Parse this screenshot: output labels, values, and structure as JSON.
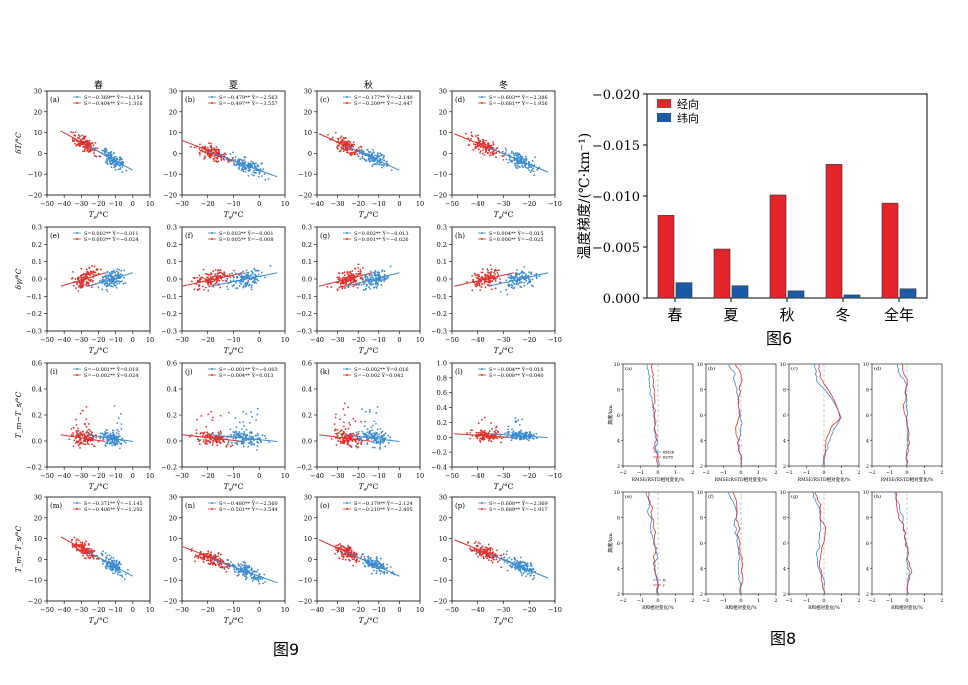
{
  "captions": {
    "fig9": "图9",
    "fig6": "图6",
    "fig8": "图8"
  },
  "colors": {
    "blue": "#3b8bd1",
    "red": "#e0302b",
    "bar_red": "#e3252b",
    "bar_blue": "#1d5aa5"
  },
  "fig9": {
    "seasons": [
      "春",
      "夏",
      "秋",
      "冬"
    ],
    "xlabel": "T",
    "xlabel_sub": "s",
    "xlabel_unit": "/°C",
    "xticks": [
      [
        "−50",
        "−40",
        "−30",
        "−20",
        "−10",
        "0",
        "10"
      ],
      [
        "−30",
        "−20",
        "−10",
        "0",
        "10"
      ],
      [
        "−40",
        "−30",
        "−20",
        "−10",
        "0",
        "10"
      ],
      [
        "−50",
        "−40",
        "−30",
        "−20",
        "−10"
      ]
    ],
    "rows": [
      {
        "ylabel": "δT/°C",
        "yticks": [
          "30",
          "20",
          "10",
          "0",
          "−10",
          "−20"
        ]
      },
      {
        "ylabel": "δγ/°C",
        "yticks": [
          "0.3",
          "0.2",
          "0.1",
          "0.0",
          "−0.1",
          "−0.2",
          "−0.3"
        ]
      },
      {
        "ylabel": "T_m−T_s/°C",
        "yticks": [
          "0.6",
          "0.4",
          "0.2",
          "0.0",
          "−0.2"
        ],
        "yticks_d": [
          "1.0",
          "0.8",
          "0.6",
          "0.4",
          "0.2",
          "0.0",
          "−0.2",
          "−0.4"
        ]
      },
      {
        "ylabel": "T_m−T_s/°C",
        "yticks": [
          "30",
          "20",
          "10",
          "0",
          "−10",
          "−20"
        ]
      }
    ],
    "panels": [
      {
        "tag": "(a)",
        "l1": "S=−0.369**  Ȳ=−1.154",
        "l2": "S=−0.404**  Ȳ=−1.316"
      },
      {
        "tag": "(b)",
        "l1": "S=−0.479**  Ȳ=−2.563",
        "l2": "S=−0.497**  Ȳ=−3.557"
      },
      {
        "tag": "(c)",
        "l1": "S=−0.177**  Ȳ=−2.140",
        "l2": "S=−0.209**  Ȳ=−2.447"
      },
      {
        "tag": "(d)",
        "l1": "S=−0.603**  Ȳ=−2.386",
        "l2": "S=−0.681**  Ȳ=−1.956"
      },
      {
        "tag": "(e)",
        "l1": "S=0.002**  Ȳ=−0.011",
        "l2": "S=0.003**  Ȳ=−0.024"
      },
      {
        "tag": "(f)",
        "l1": "S=0.003**  Ȳ=−0.001",
        "l2": "S=0.005**  Ȳ=−0.008"
      },
      {
        "tag": "(g)",
        "l1": "S=0.002**  Ȳ=−0.013",
        "l2": "S=0.001**  Ȳ=−0.026"
      },
      {
        "tag": "(h)",
        "l1": "S=0.004**  Ȳ=−0.015",
        "l2": "S=0.006**  Ȳ=−0.025"
      },
      {
        "tag": "(i)",
        "l1": "S=−0.001**  Ȳ=0.010",
        "l2": "S=−0.002**  Ȳ=0.024"
      },
      {
        "tag": "(j)",
        "l1": "S=−0.001**  Ȳ=−0.003",
        "l2": "S=−0.004**  Ȳ=0.013"
      },
      {
        "tag": "(k)",
        "l1": "S=−0.002**  Ȳ=0.016",
        "l2": "S=−0.002  Ȳ=0.042"
      },
      {
        "tag": "(l)",
        "l1": "S=−0.004**  Ȳ=0.016",
        "l2": "S=−0.008**  Ȳ=0.040"
      },
      {
        "tag": "(m)",
        "l1": "S=−0.371**  Ȳ=−1.145",
        "l2": "S=−0.406**  Ȳ=−1.292"
      },
      {
        "tag": "(n)",
        "l1": "S=−0.480**  Ȳ=−2.560",
        "l2": "S=−0.501**  Ȳ=−3.544"
      },
      {
        "tag": "(o)",
        "l1": "S=−0.179**  Ȳ=−2.124",
        "l2": "S=−0.210**  Ȳ=−2.405"
      },
      {
        "tag": "(p)",
        "l1": "S=−0.608**  Ȳ=−2.369",
        "l2": "S=−0.689**  Ȳ=−1.917"
      }
    ]
  },
  "chart_data": [
    {
      "type": "bar",
      "ylabel": "温度梯度/(℃·km⁻¹)",
      "categories": [
        "春",
        "夏",
        "秋",
        "冬",
        "全年"
      ],
      "yticks": [
        "−0.020",
        "−0.015",
        "−0.010",
        "−0.005",
        "0.000"
      ],
      "ylim": [
        0,
        -0.02
      ],
      "inverted_y": true,
      "legend": "top-left",
      "series": [
        {
          "name": "经向",
          "values": [
            -0.0081,
            -0.0048,
            -0.0101,
            -0.0131,
            -0.0093
          ]
        },
        {
          "name": "纬向",
          "values": [
            -0.0015,
            -0.0012,
            -0.0007,
            -0.0003,
            -0.0009
          ]
        }
      ]
    },
    {
      "type": "line",
      "ylabel": "高度/km",
      "xlabel_top": "RMSE/RSTD相对变化/%",
      "xlabel_bottom": "R和相对变化/%",
      "xticks": [
        "−2",
        "−1",
        "0",
        "1",
        "2"
      ],
      "yticks": [
        "10",
        "8",
        "6",
        "4",
        "2"
      ],
      "legend_top": [
        "RMSE",
        "RSTD"
      ],
      "legend_bottom": [
        "R",
        "r"
      ],
      "panel_tags": [
        "(a)",
        "(b)",
        "(c)",
        "(d)",
        "(e)",
        "(f)",
        "(g)",
        "(h)"
      ]
    }
  ]
}
